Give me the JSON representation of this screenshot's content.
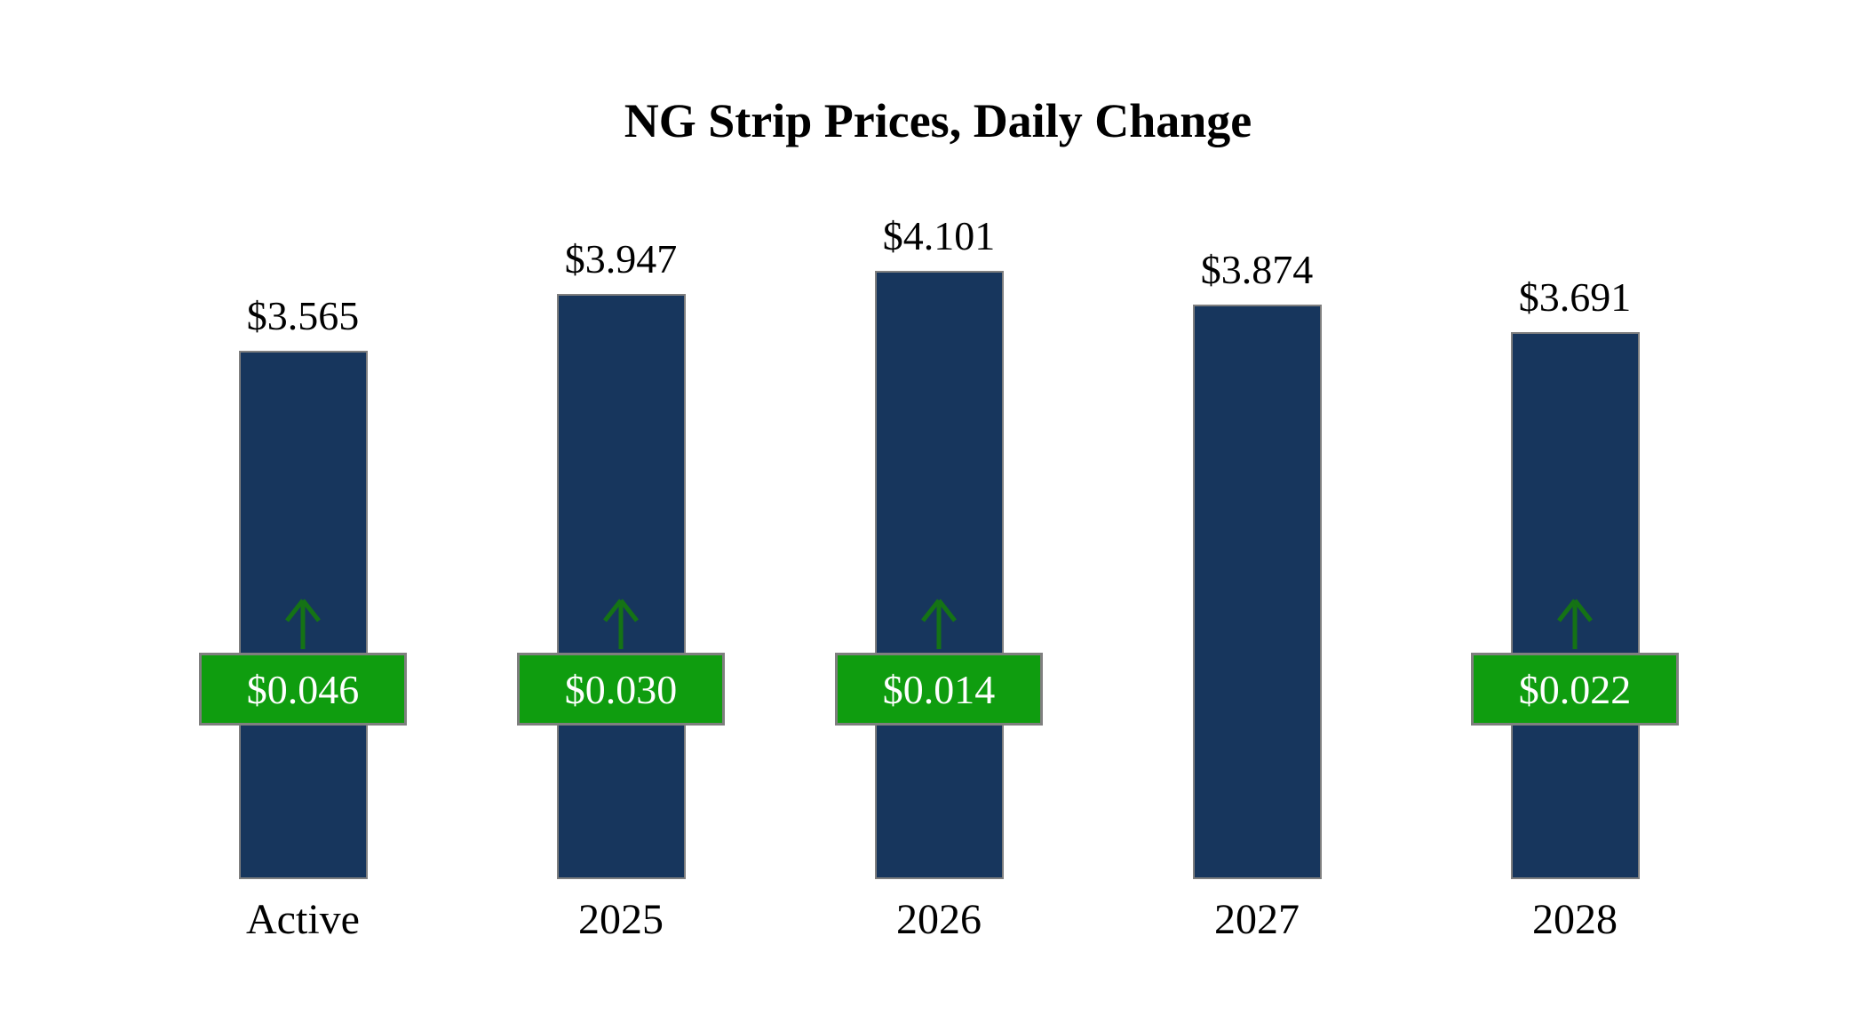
{
  "title": "NG Strip Prices, Daily Change",
  "colors": {
    "bar": "#17365d",
    "bar_border": "#7f7f7f",
    "badge_bg": "#0f9d0f",
    "badge_border": "#7f7f7f",
    "badge_text": "#ffffff",
    "arrow": "#157315",
    "text": "#000000",
    "background": "#ffffff"
  },
  "chart_data": {
    "type": "bar",
    "title": "NG Strip Prices, Daily Change",
    "categories": [
      "Active",
      "2025",
      "2026",
      "2027",
      "2028"
    ],
    "values": [
      3.565,
      3.947,
      4.101,
      3.874,
      3.691
    ],
    "value_labels": [
      "$3.565",
      "$3.947",
      "$4.101",
      "$3.874",
      "$3.691"
    ],
    "daily_changes": [
      0.046,
      0.03,
      0.014,
      null,
      0.022
    ],
    "change_labels": [
      "$0.046",
      "$0.030",
      "$0.014",
      null,
      "$0.022"
    ],
    "change_direction": [
      "up",
      "up",
      "up",
      null,
      "up"
    ],
    "xlabel": "",
    "ylabel": "",
    "ylim": [
      0,
      4.4
    ],
    "baseline": 0,
    "grid": false,
    "legend": "none",
    "axis_visible": false
  }
}
